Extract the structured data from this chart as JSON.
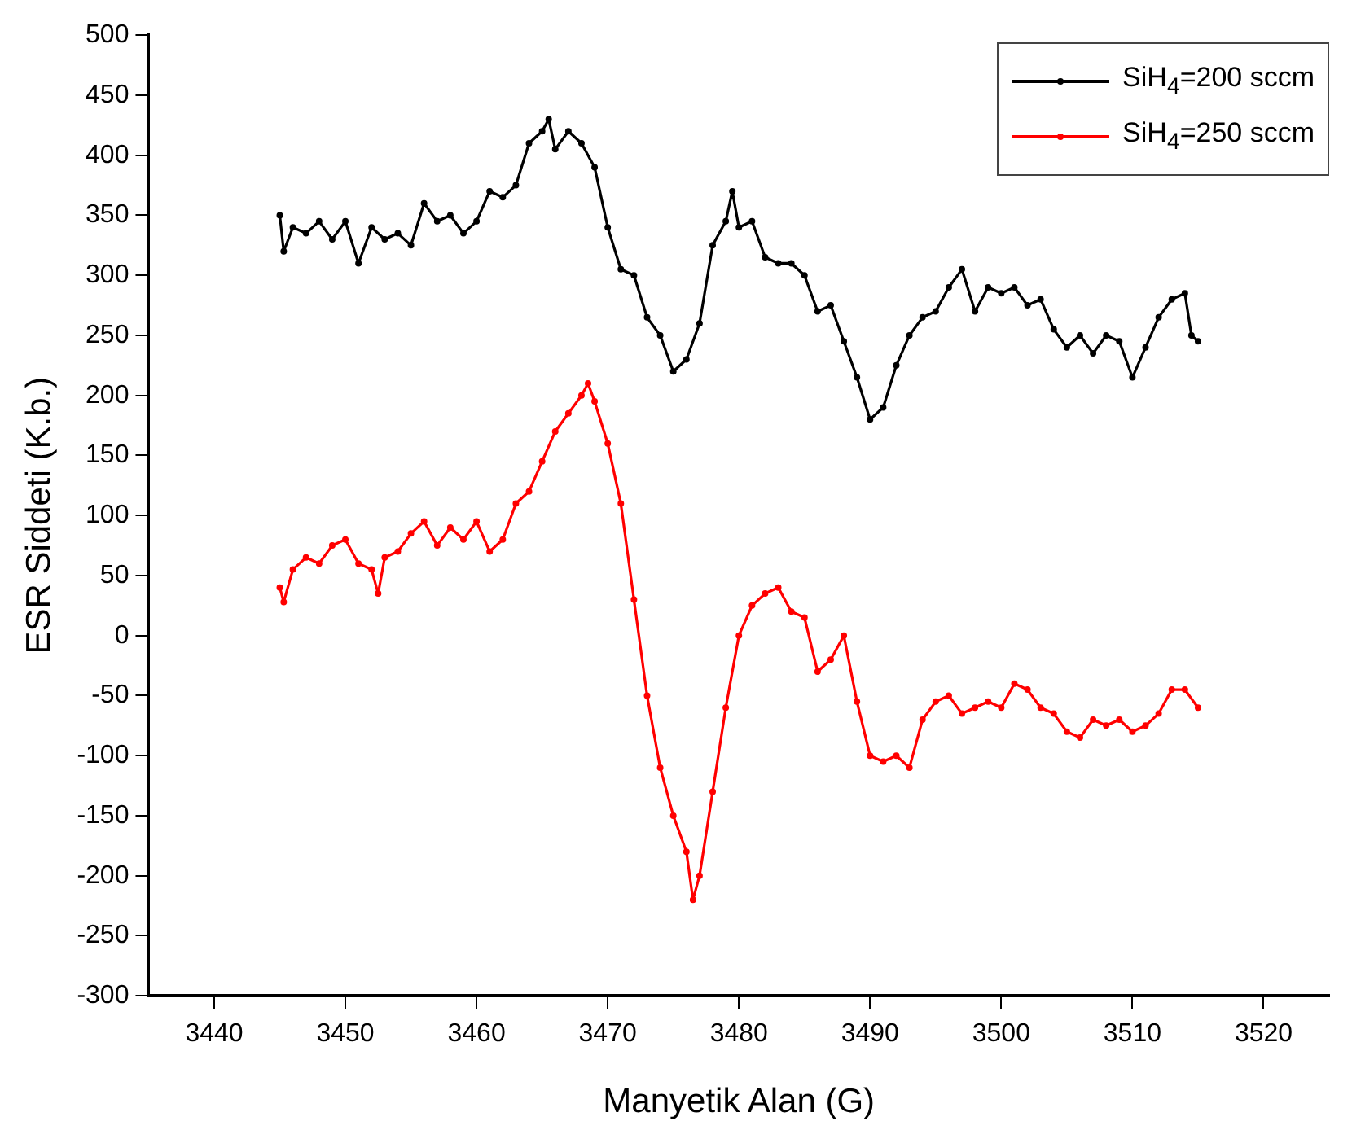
{
  "chart_data": {
    "type": "line",
    "xlabel": "Manyetik Alan (G)",
    "ylabel": "ESR Siddeti (K.b.)",
    "xlim": [
      3435,
      3525
    ],
    "xticks": [
      3440,
      3450,
      3460,
      3470,
      3480,
      3490,
      3500,
      3510,
      3520
    ],
    "ylim": [
      -300,
      500
    ],
    "yticks": [
      -300,
      -250,
      -200,
      -150,
      -100,
      -50,
      0,
      50,
      100,
      150,
      200,
      250,
      300,
      350,
      400,
      450,
      500
    ],
    "grid": false,
    "legend": "top right",
    "marker": "circle",
    "line_style": "solid",
    "series": [
      {
        "name": "SiH$_{4}$=200 sccm",
        "color": "#000000",
        "x": [
          3445,
          3445.3,
          3446,
          3447,
          3448,
          3449,
          3450,
          3451,
          3452,
          3453,
          3454,
          3455,
          3456,
          3457,
          3458,
          3459,
          3460,
          3461,
          3462,
          3463,
          3464,
          3465,
          3465.5,
          3466,
          3467,
          3468,
          3469,
          3470,
          3471,
          3472,
          3473,
          3474,
          3475,
          3476,
          3477,
          3478,
          3479,
          3479.5,
          3480,
          3481,
          3482,
          3483,
          3484,
          3485,
          3486,
          3487,
          3488,
          3489,
          3490,
          3491,
          3492,
          3493,
          3494,
          3495,
          3496,
          3497,
          3498,
          3499,
          3500,
          3501,
          3502,
          3503,
          3504,
          3505,
          3506,
          3507,
          3508,
          3509,
          3510,
          3511,
          3512,
          3513,
          3514,
          3514.5,
          3515
        ],
        "values": [
          350,
          320,
          340,
          335,
          345,
          330,
          345,
          310,
          340,
          330,
          335,
          325,
          360,
          345,
          350,
          335,
          345,
          370,
          365,
          375,
          410,
          420,
          430,
          405,
          420,
          410,
          390,
          340,
          305,
          300,
          265,
          250,
          220,
          230,
          260,
          325,
          345,
          370,
          340,
          345,
          315,
          310,
          310,
          300,
          270,
          275,
          245,
          215,
          180,
          190,
          225,
          250,
          265,
          270,
          290,
          305,
          270,
          290,
          285,
          290,
          275,
          280,
          255,
          240,
          250,
          235,
          250,
          245,
          215,
          240,
          265,
          280,
          285,
          250,
          245
        ]
      },
      {
        "name": "SiH$_{4}$=250 sccm",
        "color": "#ff0000",
        "x": [
          3445,
          3445.3,
          3446,
          3447,
          3448,
          3449,
          3450,
          3451,
          3452,
          3452.5,
          3453,
          3454,
          3455,
          3456,
          3457,
          3458,
          3459,
          3460,
          3461,
          3462,
          3463,
          3464,
          3465,
          3466,
          3467,
          3468,
          3468.5,
          3469,
          3470,
          3471,
          3472,
          3473,
          3474,
          3475,
          3476,
          3476.5,
          3477,
          3478,
          3479,
          3480,
          3481,
          3482,
          3483,
          3484,
          3485,
          3486,
          3487,
          3488,
          3489,
          3490,
          3491,
          3492,
          3493,
          3494,
          3495,
          3496,
          3497,
          3498,
          3499,
          3500,
          3501,
          3502,
          3503,
          3504,
          3505,
          3506,
          3507,
          3508,
          3509,
          3510,
          3511,
          3512,
          3513,
          3514,
          3515
        ],
        "values": [
          40,
          28,
          55,
          65,
          60,
          75,
          80,
          60,
          55,
          35,
          65,
          70,
          85,
          95,
          75,
          90,
          80,
          95,
          70,
          80,
          110,
          120,
          145,
          170,
          185,
          200,
          210,
          195,
          160,
          110,
          30,
          -50,
          -110,
          -150,
          -180,
          -220,
          -200,
          -130,
          -60,
          0,
          25,
          35,
          40,
          20,
          15,
          -30,
          -20,
          0,
          -55,
          -100,
          -105,
          -100,
          -110,
          -70,
          -55,
          -50,
          -65,
          -60,
          -55,
          -60,
          -40,
          -45,
          -60,
          -65,
          -80,
          -85,
          -70,
          -75,
          -70,
          -80,
          -75,
          -65,
          -45,
          -45,
          -60
        ]
      }
    ]
  }
}
